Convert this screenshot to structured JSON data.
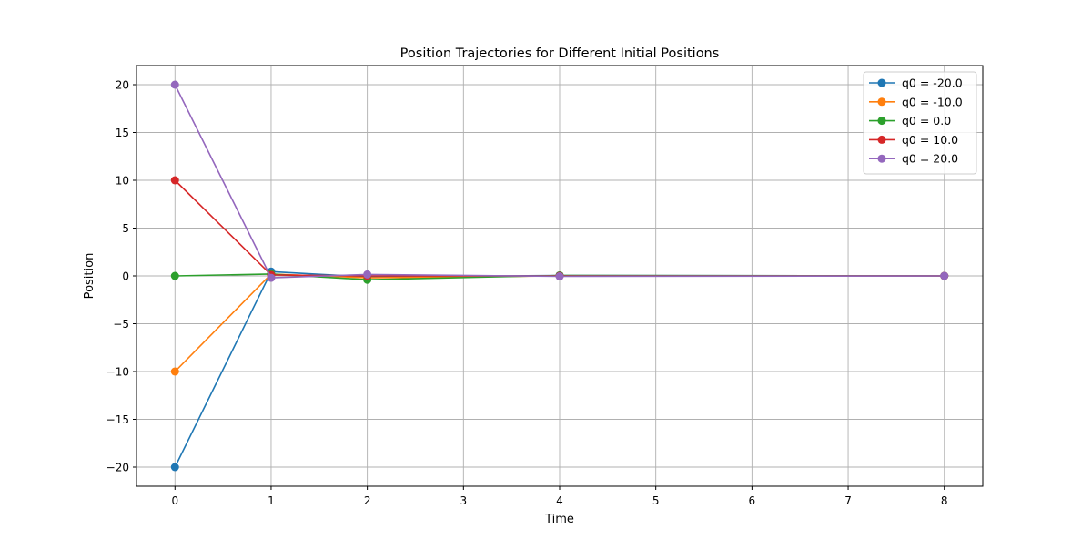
{
  "chart_data": {
    "type": "line",
    "title": "Position Trajectories for Different Initial Positions",
    "xlabel": "Time",
    "ylabel": "Position",
    "xlim": [
      -0.4,
      8.4
    ],
    "ylim": [
      -22,
      22
    ],
    "xticks": [
      0,
      1,
      2,
      3,
      4,
      5,
      6,
      7,
      8
    ],
    "yticks": [
      -20,
      -15,
      -10,
      -5,
      0,
      5,
      10,
      15,
      20
    ],
    "ytick_labels": [
      "−20",
      "−15",
      "−10",
      "−5",
      "0",
      "5",
      "10",
      "15",
      "20"
    ],
    "grid": true,
    "legend_position": "top-right",
    "x": [
      0,
      1,
      2,
      4,
      8
    ],
    "series": [
      {
        "name": "q0 = -20.0",
        "color": "#1f77b4",
        "values": [
          -20,
          0.45,
          -0.1,
          0.05,
          0
        ]
      },
      {
        "name": "q0 = -10.0",
        "color": "#ff7f0e",
        "values": [
          -10,
          0.2,
          -0.2,
          0.0,
          0
        ]
      },
      {
        "name": "q0 = 0.0",
        "color": "#2ca02c",
        "values": [
          0,
          0.2,
          -0.4,
          0.05,
          0
        ]
      },
      {
        "name": "q0 = 10.0",
        "color": "#d62728",
        "values": [
          10,
          0.1,
          0.0,
          0.0,
          0
        ]
      },
      {
        "name": "q0 = 20.0",
        "color": "#9467bd",
        "values": [
          20,
          -0.2,
          0.15,
          -0.05,
          0
        ]
      }
    ]
  }
}
